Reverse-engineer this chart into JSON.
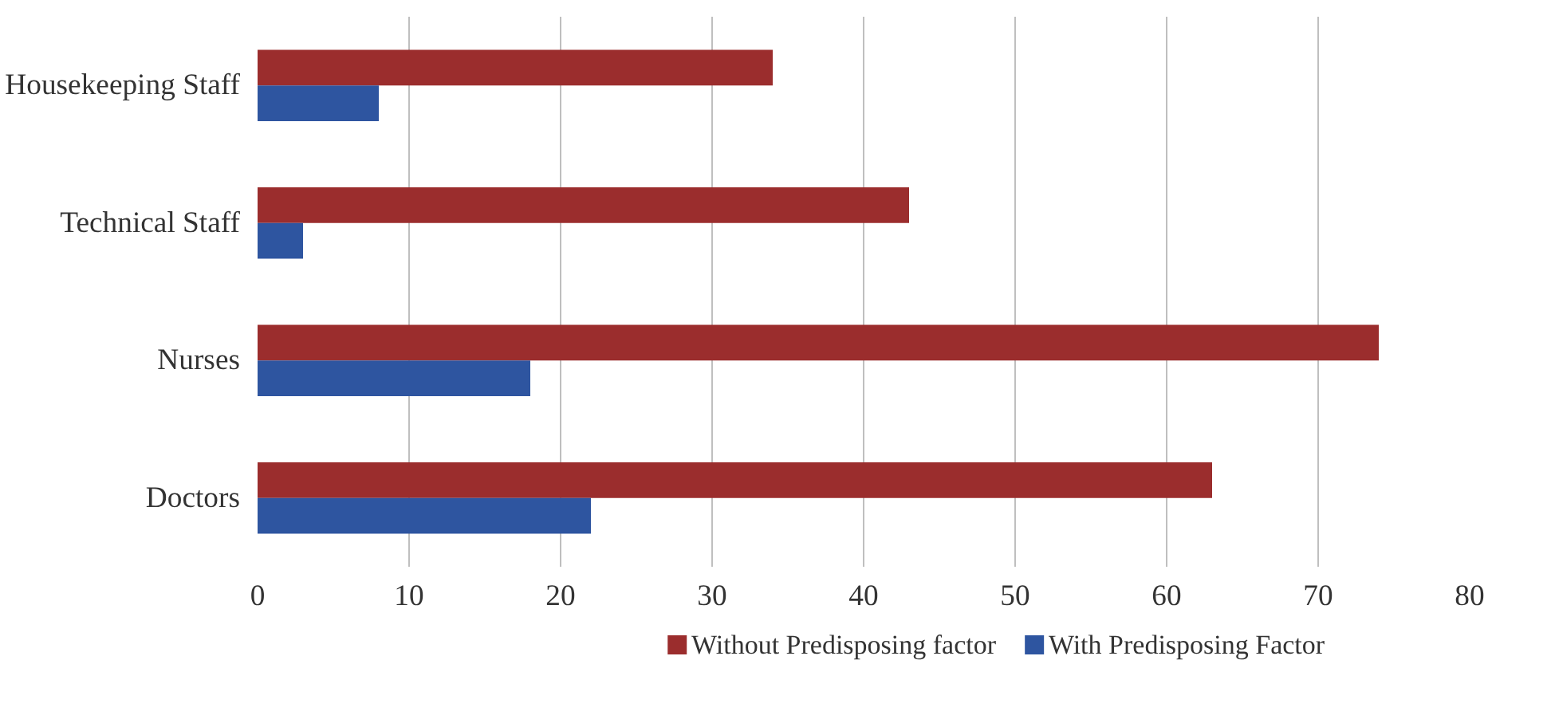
{
  "chart_data": {
    "type": "bar",
    "orientation": "horizontal",
    "categories": [
      "Housekeeping Staff",
      "Technical Staff",
      "Nurses",
      "Doctors"
    ],
    "series": [
      {
        "name": "Without Predisposing factor",
        "color": "#9b2d2d",
        "values": [
          34,
          43,
          74,
          63
        ]
      },
      {
        "name": "With Predisposing Factor",
        "color": "#2e55a0",
        "values": [
          8,
          3,
          18,
          22
        ]
      }
    ],
    "xlim": [
      0,
      80
    ],
    "xticks": [
      0,
      10,
      20,
      30,
      40,
      50,
      60,
      70,
      80
    ],
    "grid": "x",
    "legend": "bottom"
  }
}
